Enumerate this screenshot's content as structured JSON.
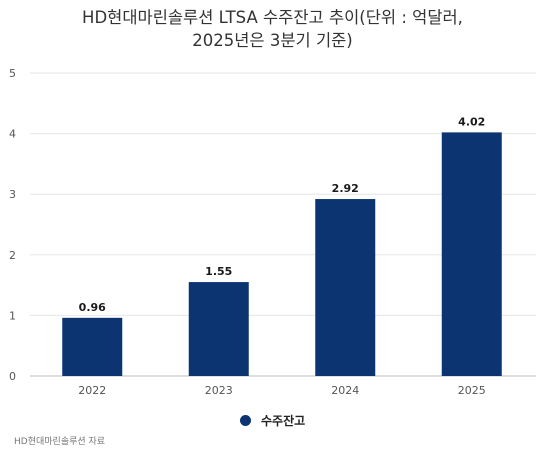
{
  "title_line1": "HD현대마린솔루션 LTSA 수주잔고 추이(단위 : 억달러,",
  "title_line2": "2025년은 3분기 기준)",
  "source": "HD현대마린솔루션 자료",
  "chart_data": {
    "type": "bar",
    "title": "HD현대마린솔루션 LTSA 수주잔고 추이(단위 : 억달러, 2025년은 3분기 기준)",
    "categories": [
      "2022",
      "2023",
      "2024",
      "2025"
    ],
    "series": [
      {
        "name": "수주잔고",
        "values": [
          0.96,
          1.55,
          2.92,
          4.02
        ],
        "labels": [
          "0.96",
          "1.55",
          "2.92",
          "4.02"
        ],
        "color": "#0b3470"
      }
    ],
    "ylim": [
      0,
      5
    ],
    "yticks": [
      "0",
      "1",
      "2",
      "3",
      "4",
      "5"
    ],
    "grid": true,
    "legend": "bottom-center",
    "xlabel": "",
    "ylabel": ""
  }
}
